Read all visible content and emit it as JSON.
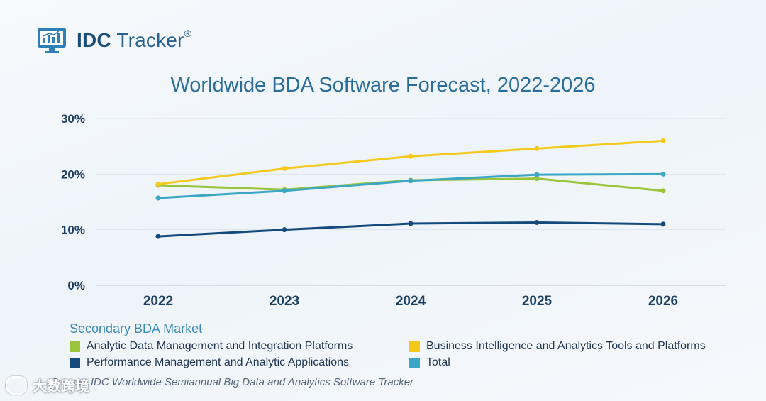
{
  "logo": {
    "brand": "IDC",
    "product": "Tracker",
    "mark": "®"
  },
  "chart_data": {
    "type": "line",
    "title": "Worldwide BDA Software Forecast, 2022-2026",
    "xlabel": "",
    "ylabel": "",
    "categories": [
      "2022",
      "2023",
      "2024",
      "2025",
      "2026"
    ],
    "ylim": [
      0,
      30
    ],
    "yticks": [
      0,
      10,
      20,
      30
    ],
    "ytick_labels": [
      "0%",
      "10%",
      "20%",
      "30%"
    ],
    "grid": true,
    "series": [
      {
        "name": "Analytic Data Management and Integration Platforms",
        "color": "#9ac43c",
        "values": [
          18.0,
          17.2,
          18.9,
          19.2,
          17.0
        ]
      },
      {
        "name": "Business Intelligence and Analytics Tools and Platforms",
        "color": "#f5c91c",
        "values": [
          18.2,
          21.0,
          23.2,
          24.6,
          26.0
        ]
      },
      {
        "name": "Performance Management and Analytic Applications",
        "color": "#154a7d",
        "values": [
          8.8,
          10.0,
          11.1,
          11.3,
          11.0
        ]
      },
      {
        "name": "Total",
        "color": "#3ba7c4",
        "values": [
          15.7,
          17.0,
          18.8,
          19.9,
          20.0
        ]
      }
    ],
    "legend_title": "Secondary BDA Market"
  },
  "source": "Source: IDC Worldwide Semiannual Big Data and Analytics Software Tracker",
  "watermark": "大数跨境"
}
